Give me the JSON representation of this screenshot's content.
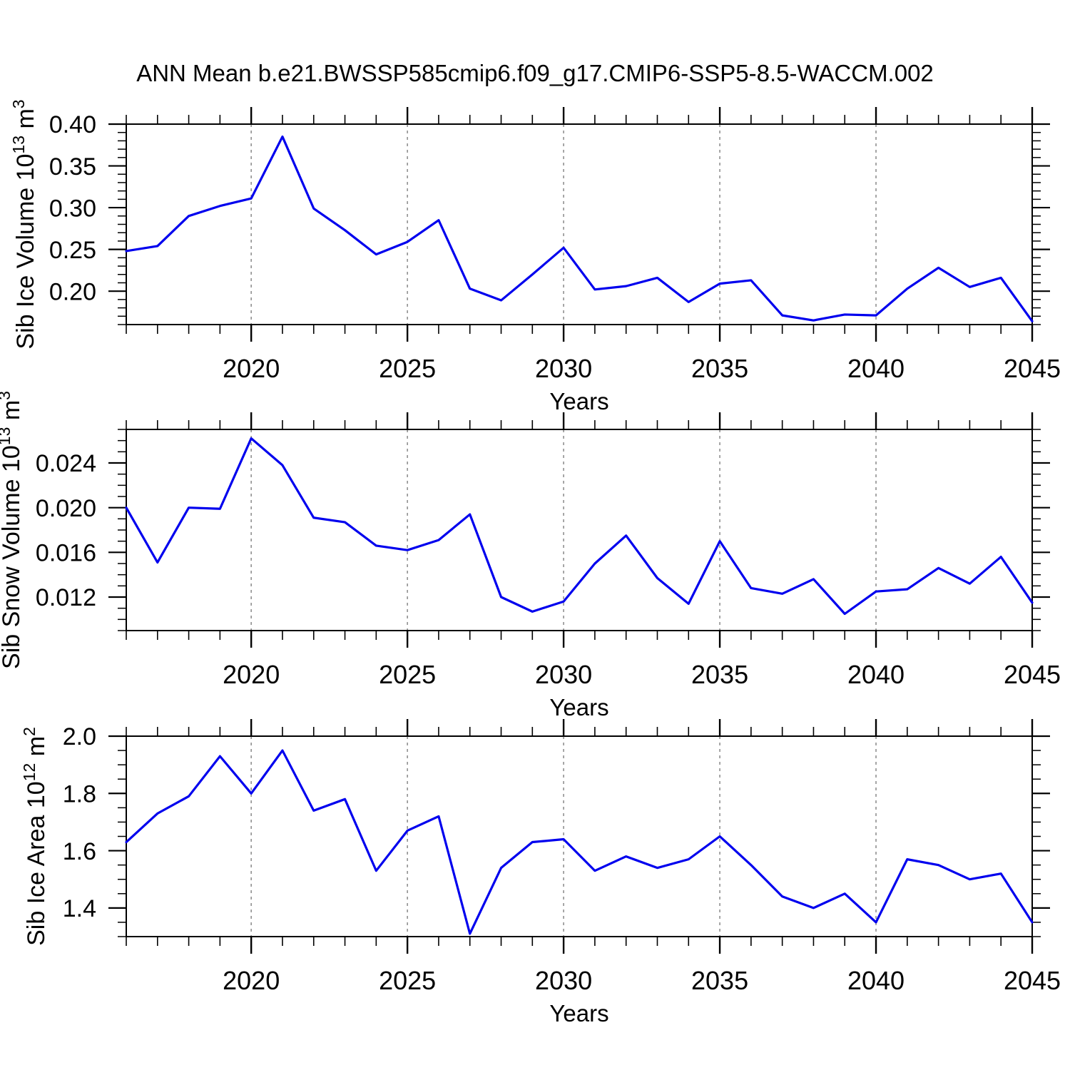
{
  "title": "ANN Mean b.e21.BWSSP585cmip6.f09_g17.CMIP6-SSP5-8.5-WACCM.002",
  "colors": {
    "line": "#0000ee",
    "grid": "#909090",
    "axis": "#000000",
    "text": "#000000",
    "background": "#ffffff"
  },
  "years": [
    2016,
    2017,
    2018,
    2019,
    2020,
    2021,
    2022,
    2023,
    2024,
    2025,
    2026,
    2027,
    2028,
    2029,
    2030,
    2031,
    2032,
    2033,
    2034,
    2035,
    2036,
    2037,
    2038,
    2039,
    2040,
    2041,
    2042,
    2043,
    2044,
    2045
  ],
  "x_axis": {
    "label": "Years",
    "range": [
      2016,
      2045
    ],
    "major_ticks": [
      2020,
      2025,
      2030,
      2035,
      2040,
      2045
    ],
    "tick_labels": [
      "2020",
      "2025",
      "2030",
      "2035",
      "2040",
      "2045"
    ],
    "grid_years": [
      2020,
      2025,
      2030,
      2035,
      2040
    ],
    "minor_step": 1
  },
  "chart_data": [
    {
      "type": "line",
      "id": "sib-ice-volume",
      "ylabel": "Sib Ice Volume 10^13 m^3",
      "ylabel_parts": [
        {
          "t": "Sib Ice Volume 10",
          "sup": false
        },
        {
          "t": "13",
          "sup": true
        },
        {
          "t": " m",
          "sup": false
        },
        {
          "t": "3",
          "sup": true
        }
      ],
      "xlabel": "Years",
      "ylim": [
        0.16,
        0.4
      ],
      "y_major_ticks": [
        0.2,
        0.25,
        0.3,
        0.35,
        0.4
      ],
      "y_tick_labels": [
        "0.20",
        "0.25",
        "0.30",
        "0.35",
        "0.40"
      ],
      "y_minor_step": 0.01,
      "values": [
        0.248,
        0.254,
        0.29,
        0.302,
        0.311,
        0.385,
        0.299,
        0.273,
        0.244,
        0.259,
        0.285,
        0.203,
        0.189,
        0.22,
        0.252,
        0.202,
        0.206,
        0.216,
        0.187,
        0.209,
        0.213,
        0.171,
        0.165,
        0.172,
        0.171,
        0.203,
        0.228,
        0.205,
        0.216,
        0.164
      ]
    },
    {
      "type": "line",
      "id": "sib-snow-volume",
      "ylabel": "Sib Snow Volume 10^13 m^3",
      "ylabel_parts": [
        {
          "t": "Sib Snow Volume 10",
          "sup": false
        },
        {
          "t": "13",
          "sup": true
        },
        {
          "t": " m",
          "sup": false
        },
        {
          "t": "3",
          "sup": true
        }
      ],
      "xlabel": "Years",
      "ylim": [
        0.009,
        0.027
      ],
      "y_major_ticks": [
        0.012,
        0.016,
        0.02,
        0.024
      ],
      "y_tick_labels": [
        "0.012",
        "0.016",
        "0.020",
        "0.024"
      ],
      "y_minor_step": 0.001,
      "values": [
        0.02,
        0.0151,
        0.02,
        0.0199,
        0.0262,
        0.0238,
        0.0191,
        0.0187,
        0.0166,
        0.0162,
        0.0171,
        0.0194,
        0.012,
        0.0107,
        0.0116,
        0.015,
        0.0175,
        0.0137,
        0.0114,
        0.017,
        0.0128,
        0.0123,
        0.0136,
        0.0105,
        0.0125,
        0.0127,
        0.0146,
        0.0132,
        0.0156,
        0.0115
      ]
    },
    {
      "type": "line",
      "id": "sib-ice-area",
      "ylabel": "Sib Ice Area 10^12 m^2",
      "ylabel_parts": [
        {
          "t": "Sib Ice Area 10",
          "sup": false
        },
        {
          "t": "12",
          "sup": true
        },
        {
          "t": " m",
          "sup": false
        },
        {
          "t": "2",
          "sup": true
        }
      ],
      "xlabel": "Years",
      "ylim": [
        1.3,
        2.0
      ],
      "y_major_ticks": [
        1.4,
        1.6,
        1.8,
        2.0
      ],
      "y_tick_labels": [
        "1.4",
        "1.6",
        "1.8",
        "2.0"
      ],
      "y_minor_step": 0.05,
      "values": [
        1.63,
        1.73,
        1.79,
        1.93,
        1.8,
        1.95,
        1.74,
        1.78,
        1.53,
        1.67,
        1.72,
        1.31,
        1.54,
        1.63,
        1.64,
        1.53,
        1.58,
        1.54,
        1.57,
        1.65,
        1.55,
        1.44,
        1.4,
        1.45,
        1.35,
        1.57,
        1.55,
        1.5,
        1.52,
        1.35
      ]
    }
  ]
}
